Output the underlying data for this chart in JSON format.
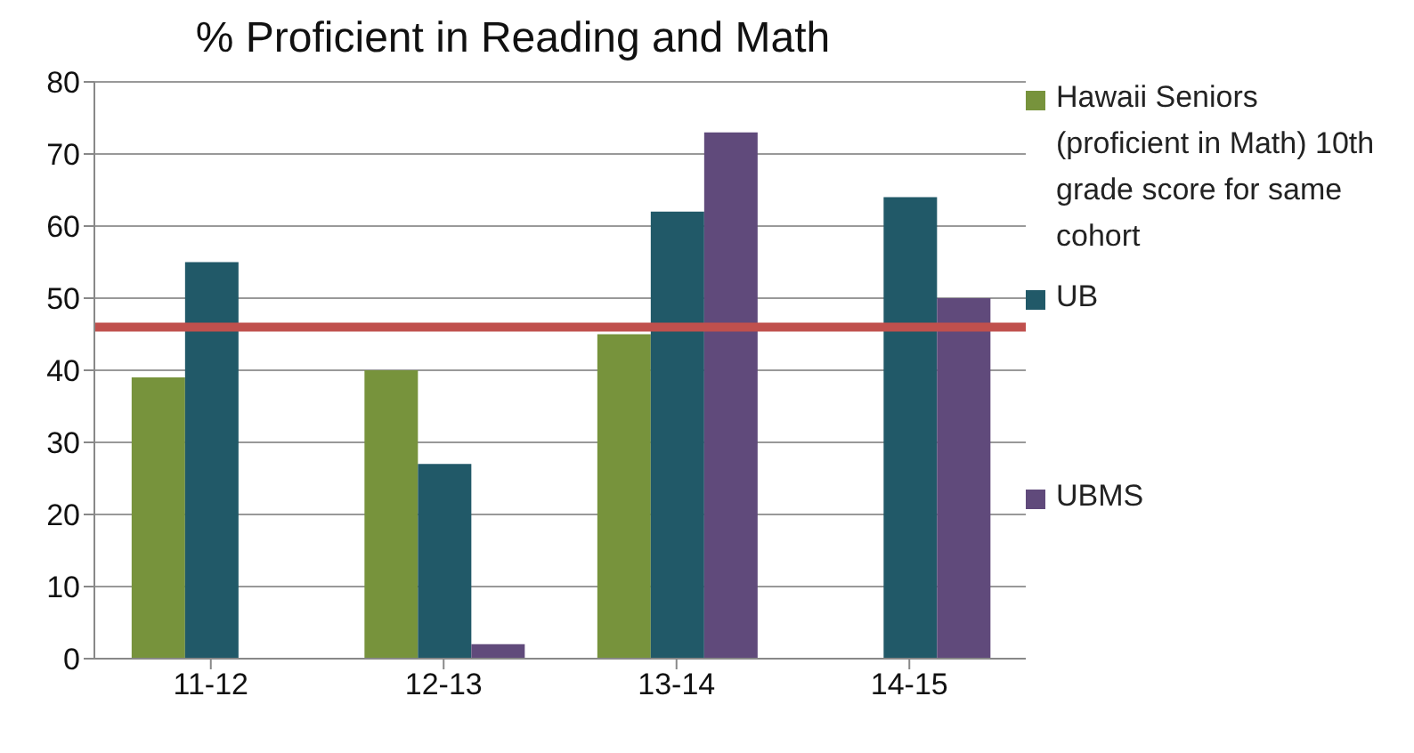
{
  "chart_data": {
    "type": "bar",
    "title": "% Proficient in Reading and Math",
    "categories": [
      "11-12",
      "12-13",
      "13-14",
      "14-15"
    ],
    "series": [
      {
        "name": "Hawaii Seniors (proficient in Math) 10th grade score for same cohort",
        "color": "#77933c",
        "values": [
          39,
          40,
          45,
          null
        ]
      },
      {
        "name": "UB",
        "color": "#215968",
        "values": [
          55,
          27,
          62,
          64
        ]
      },
      {
        "name": "UBMS",
        "color": "#604a7b",
        "values": [
          null,
          2,
          73,
          50
        ]
      }
    ],
    "ylim": [
      0,
      80
    ],
    "yticks": [
      0,
      10,
      20,
      30,
      40,
      50,
      60,
      70,
      80
    ],
    "grid": "y",
    "legend": "right",
    "ref_lines": [
      {
        "axis": "y",
        "value": 46,
        "color": "#c0504d"
      }
    ]
  }
}
